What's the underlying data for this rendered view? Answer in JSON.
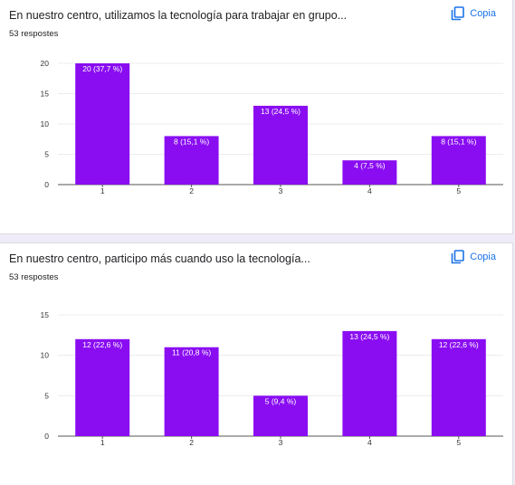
{
  "copy_label": "Copia",
  "cards": [
    {
      "question": "En nuestro centro, utilizamos la tecnología para trabajar en grupo...",
      "responses": "53 respostes"
    },
    {
      "question": "En nuestro centro, participo más cuando uso la tecnología...",
      "responses": "53 respostes"
    }
  ],
  "colors": {
    "bar": "#8a0df2",
    "copy": "#1a73e8",
    "grid": "#ececec",
    "axis": "#555555",
    "background": "#f0ebf8"
  },
  "icons": {
    "copy": "copy-content-icon"
  },
  "chart_data": [
    {
      "type": "bar",
      "categories": [
        "1",
        "2",
        "3",
        "4",
        "5"
      ],
      "values": [
        20,
        8,
        13,
        4,
        8
      ],
      "data_labels": [
        "20 (37,7 %)",
        "8 (15,1 %)",
        "13 (24,5 %)",
        "4 (7,5 %)",
        "8 (15,1 %)"
      ],
      "yticks": [
        "0",
        "5",
        "10",
        "15",
        "20"
      ],
      "ylim": [
        0,
        20
      ],
      "grid": true
    },
    {
      "type": "bar",
      "categories": [
        "1",
        "2",
        "3",
        "4",
        "5"
      ],
      "values": [
        12,
        11,
        5,
        13,
        12
      ],
      "data_labels": [
        "12 (22,6 %)",
        "11 (20,8 %)",
        "5 (9,4 %)",
        "13 (24,5 %)",
        "12 (22,6 %)"
      ],
      "yticks": [
        "0",
        "5",
        "10",
        "15"
      ],
      "ylim": [
        0,
        15
      ],
      "grid": true
    }
  ]
}
